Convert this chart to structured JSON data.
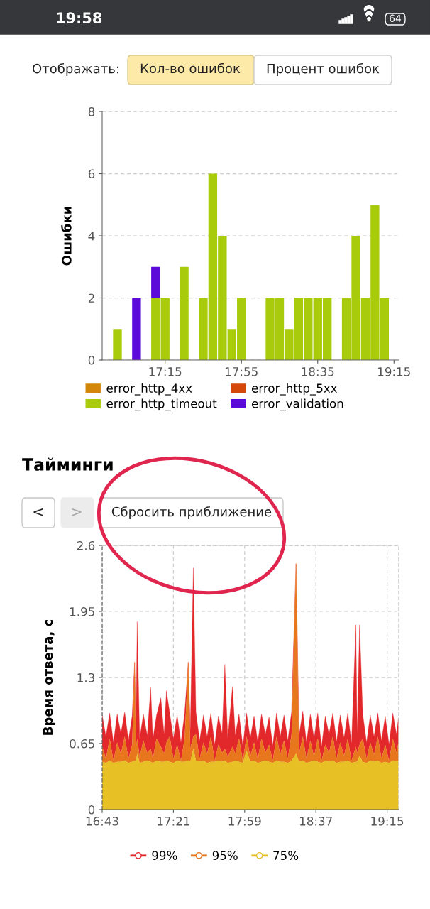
{
  "chart_data": [
    {
      "type": "other",
      "annotations": [
        "19:58",
        "64",
        "Отображать:",
        "Кол-во ошибок",
        "Процент ошибок"
      ]
    },
    {
      "type": "bar",
      "stacked": true,
      "ylabel": "Ошибки",
      "legend": "bottom",
      "grid": "y",
      "x": [
        16.8333,
        17.0,
        17.1667,
        17.25,
        17.4167,
        17.5833,
        17.6667,
        17.75,
        17.8333,
        17.9167,
        18.1667,
        18.25,
        18.3333,
        18.4167,
        18.5,
        18.5833,
        18.6667,
        18.8333,
        18.9167,
        19.0,
        19.0833,
        19.1667
      ],
      "xlim": [
        16.7,
        19.2917
      ],
      "xticks": [
        {
          "value": 17.25,
          "label": "17:15"
        },
        {
          "value": 17.9167,
          "label": "17:55"
        },
        {
          "value": 18.5833,
          "label": "18:35"
        },
        {
          "value": 19.25,
          "label": "19:15"
        }
      ],
      "ylim": [
        0,
        8
      ],
      "yticks": [
        0,
        2,
        4,
        6,
        8
      ],
      "series": [
        {
          "name": "error_http_4xx",
          "color": "#d4860a",
          "values": [
            0,
            0,
            0,
            0,
            0,
            0,
            0,
            0,
            0,
            0,
            0,
            0,
            0,
            0,
            0,
            0,
            0,
            0,
            0,
            0,
            0,
            0
          ]
        },
        {
          "name": "error_http_5xx",
          "color": "#d4480a",
          "values": [
            0,
            0,
            0,
            0,
            0,
            0,
            0,
            0,
            0,
            0,
            0,
            0,
            0,
            0,
            0,
            0,
            0,
            0,
            0,
            0,
            0,
            0
          ]
        },
        {
          "name": "error_http_timeout",
          "color": "#a8cb0c",
          "values": [
            1,
            0,
            2,
            2,
            3,
            2,
            6,
            4,
            1,
            2,
            2,
            2,
            1,
            2,
            2,
            2,
            2,
            2,
            4,
            2,
            5,
            2
          ]
        },
        {
          "name": "error_validation",
          "color": "#5b0ad9",
          "values": [
            0,
            2,
            1,
            0,
            0,
            0,
            0,
            0,
            0,
            0,
            0,
            0,
            0,
            0,
            0,
            0,
            0,
            0,
            0,
            0,
            0,
            0
          ]
        }
      ]
    },
    {
      "type": "other",
      "title": "Тайминги",
      "annotations": [
        "<",
        ">",
        "Сбросить приближение"
      ]
    },
    {
      "type": "area",
      "ylabel": "Время ответа, с",
      "legend": "bottom",
      "grid": true,
      "x": [
        16.717,
        16.75,
        16.783,
        16.817,
        16.85,
        16.883,
        16.917,
        16.95,
        16.983,
        17.005,
        17.017,
        17.028,
        17.05,
        17.083,
        17.117,
        17.148,
        17.167,
        17.2,
        17.238,
        17.267,
        17.288,
        17.317,
        17.35,
        17.383,
        17.417,
        17.45,
        17.482,
        17.5,
        17.527,
        17.55,
        17.583,
        17.617,
        17.65,
        17.683,
        17.717,
        17.75,
        17.783,
        17.807,
        17.833,
        17.875,
        17.9,
        17.933,
        17.967,
        18.0,
        18.033,
        18.067,
        18.1,
        18.133,
        18.167,
        18.2,
        18.233,
        18.267,
        18.3,
        18.333,
        18.367,
        18.4,
        18.44,
        18.467,
        18.5,
        18.533,
        18.567,
        18.6,
        18.633,
        18.667,
        18.7,
        18.733,
        18.767,
        18.8,
        18.833,
        18.867,
        18.9,
        18.933,
        18.972,
        18.983,
        19.005,
        19.033,
        19.067,
        19.1,
        19.133,
        19.167,
        19.2,
        19.233,
        19.267,
        19.3,
        19.333,
        19.35
      ],
      "xlim": [
        16.7167,
        19.3533
      ],
      "xticks": [
        {
          "value": 16.7167,
          "label": "16:43"
        },
        {
          "value": 17.35,
          "label": "17:21"
        },
        {
          "value": 17.9833,
          "label": "17:59"
        },
        {
          "value": 18.6167,
          "label": "18:37"
        },
        {
          "value": 19.25,
          "label": "19:15"
        }
      ],
      "ylim": [
        0,
        2.6
      ],
      "yticks": [
        0,
        0.65,
        1.3,
        1.95,
        2.6
      ],
      "series": [
        {
          "name": "99%",
          "color": "#e3282c",
          "values": [
            0.93,
            0.72,
            0.95,
            0.66,
            0.94,
            0.75,
            0.96,
            0.68,
            0.92,
            1.45,
            0.8,
            1.85,
            0.7,
            0.94,
            0.73,
            1.2,
            0.69,
            0.93,
            1.1,
            0.74,
            1.17,
            0.95,
            0.7,
            0.93,
            0.66,
            0.95,
            1.45,
            0.78,
            2.38,
            0.96,
            0.68,
            0.93,
            0.72,
            0.95,
            0.64,
            0.92,
            0.75,
            1.43,
            0.7,
            1.21,
            0.73,
            0.94,
            0.62,
            0.95,
            0.7,
            0.92,
            0.66,
            0.94,
            0.74,
            0.91,
            0.63,
            0.95,
            0.72,
            0.93,
            0.68,
            0.96,
            2.42,
            0.73,
            0.97,
            0.66,
            0.94,
            0.7,
            0.95,
            0.62,
            0.92,
            0.74,
            0.95,
            0.67,
            0.93,
            0.71,
            0.95,
            0.65,
            1.82,
            0.75,
            1.82,
            0.94,
            0.66,
            0.93,
            0.72,
            0.95,
            0.68,
            0.92,
            0.64,
            0.95,
            0.74,
            0.9
          ]
        },
        {
          "name": "95%",
          "color": "#e8761c",
          "values": [
            0.62,
            0.5,
            0.7,
            0.48,
            0.66,
            0.55,
            0.72,
            0.5,
            0.64,
            1.45,
            0.6,
            0.7,
            0.52,
            0.68,
            0.56,
            0.6,
            0.5,
            0.7,
            0.62,
            0.55,
            0.66,
            0.72,
            0.5,
            0.64,
            0.48,
            0.7,
            1.45,
            0.6,
            0.72,
            0.74,
            0.5,
            0.66,
            0.55,
            0.72,
            0.48,
            0.64,
            0.56,
            0.6,
            0.52,
            0.62,
            0.55,
            0.7,
            0.48,
            0.72,
            0.52,
            0.66,
            0.5,
            0.7,
            0.56,
            0.64,
            0.48,
            0.72,
            0.54,
            0.68,
            0.5,
            0.74,
            2.42,
            0.55,
            0.72,
            0.5,
            0.68,
            0.52,
            0.7,
            0.48,
            0.64,
            0.56,
            0.72,
            0.5,
            0.66,
            0.53,
            0.7,
            0.48,
            0.62,
            0.56,
            0.64,
            0.7,
            0.5,
            0.66,
            0.54,
            0.72,
            0.5,
            0.64,
            0.48,
            0.7,
            0.56,
            0.66
          ]
        },
        {
          "name": "75%",
          "color": "#e6c024",
          "values": [
            0.47,
            0.46,
            0.48,
            0.46,
            0.47,
            0.47,
            0.48,
            0.46,
            0.47,
            0.48,
            0.47,
            0.55,
            0.46,
            0.47,
            0.48,
            0.47,
            0.46,
            0.48,
            0.47,
            0.47,
            0.48,
            0.47,
            0.46,
            0.48,
            0.47,
            0.47,
            0.48,
            0.47,
            0.6,
            0.48,
            0.47,
            0.48,
            0.46,
            0.47,
            0.47,
            0.48,
            0.47,
            0.48,
            0.46,
            0.47,
            0.48,
            0.47,
            0.46,
            0.58,
            0.47,
            0.48,
            0.46,
            0.47,
            0.48,
            0.47,
            0.46,
            0.48,
            0.47,
            0.47,
            0.46,
            0.48,
            0.55,
            0.47,
            0.48,
            0.46,
            0.47,
            0.48,
            0.47,
            0.46,
            0.48,
            0.47,
            0.48,
            0.46,
            0.47,
            0.47,
            0.48,
            0.46,
            0.47,
            0.47,
            0.53,
            0.47,
            0.46,
            0.48,
            0.47,
            0.48,
            0.46,
            0.47,
            0.46,
            0.48,
            0.47,
            0.48
          ]
        }
      ]
    }
  ]
}
